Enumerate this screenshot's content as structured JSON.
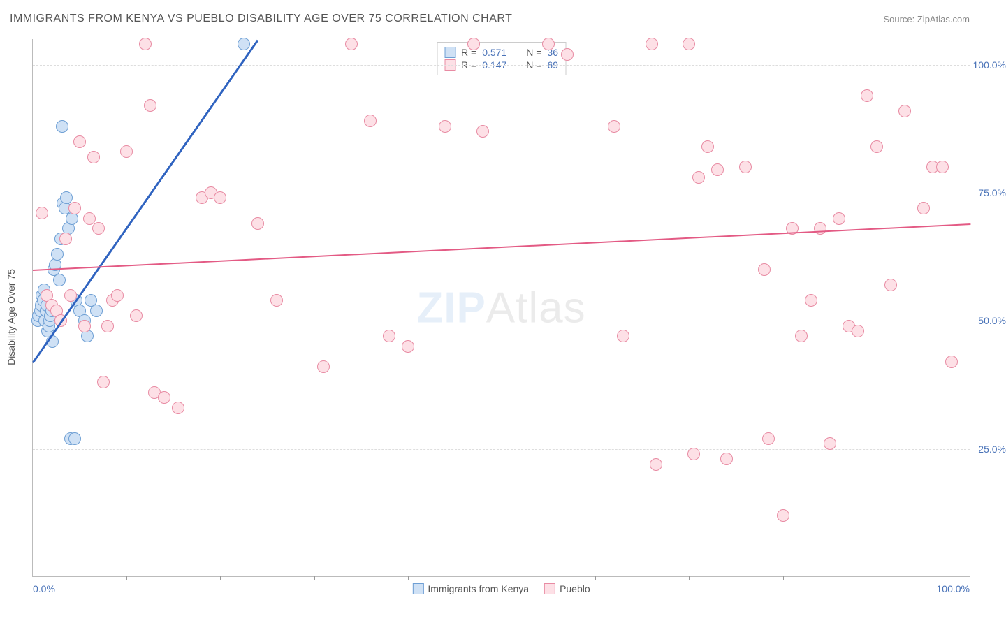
{
  "title": "IMMIGRANTS FROM KENYA VS PUEBLO DISABILITY AGE OVER 75 CORRELATION CHART",
  "source_label": "Source: ZipAtlas.com",
  "ylabel": "Disability Age Over 75",
  "watermark_bold": "ZIP",
  "watermark_light": "Atlas",
  "watermark_color_bold": "#a9c7ea",
  "watermark_color_light": "#b8b8b8",
  "chart": {
    "type": "scatter",
    "background_color": "#ffffff",
    "grid_color": "#dddddd",
    "axis_color": "#bbbbbb",
    "tick_color": "#4a73b8",
    "xlim": [
      0,
      100
    ],
    "ylim": [
      0,
      105
    ],
    "y_ticks": [
      25,
      50,
      75,
      100
    ],
    "y_tick_labels": [
      "25.0%",
      "50.0%",
      "75.0%",
      "100.0%"
    ],
    "x_ticks_minor": [
      10,
      20,
      30,
      40,
      50,
      60,
      70,
      80,
      90
    ],
    "x_tick_left_label": "0.0%",
    "x_tick_right_label": "100.0%",
    "marker_radius": 9,
    "marker_stroke_width": 1.5,
    "series": [
      {
        "name": "Immigrants from Kenya",
        "fill": "#cfe1f5",
        "stroke": "#6e9fd4",
        "r_value": "0.571",
        "n_value": "36",
        "trend": {
          "x1": 0,
          "y1": 42,
          "x2": 24,
          "y2": 105,
          "color": "#2f63c0",
          "width": 3
        },
        "points": [
          [
            0.5,
            50
          ],
          [
            0.6,
            51
          ],
          [
            0.8,
            52
          ],
          [
            0.9,
            53
          ],
          [
            1.0,
            55
          ],
          [
            1.1,
            54
          ],
          [
            1.2,
            56
          ],
          [
            1.3,
            50
          ],
          [
            1.4,
            52
          ],
          [
            1.5,
            53
          ],
          [
            1.6,
            48
          ],
          [
            1.7,
            49
          ],
          [
            1.8,
            50
          ],
          [
            1.9,
            51
          ],
          [
            2.0,
            52
          ],
          [
            2.2,
            60
          ],
          [
            2.4,
            61
          ],
          [
            2.6,
            63
          ],
          [
            2.8,
            58
          ],
          [
            3.0,
            66
          ],
          [
            3.2,
            73
          ],
          [
            3.4,
            72
          ],
          [
            3.6,
            74
          ],
          [
            3.8,
            68
          ],
          [
            4.2,
            70
          ],
          [
            4.6,
            54
          ],
          [
            5.0,
            52
          ],
          [
            5.5,
            50
          ],
          [
            5.8,
            47
          ],
          [
            2.1,
            46
          ],
          [
            4.0,
            27
          ],
          [
            4.5,
            27
          ],
          [
            3.1,
            88
          ],
          [
            6.2,
            54
          ],
          [
            6.8,
            52
          ],
          [
            22.5,
            104
          ]
        ]
      },
      {
        "name": "Pueblo",
        "fill": "#fde0e6",
        "stroke": "#e88ba3",
        "r_value": "0.147",
        "n_value": "69",
        "trend": {
          "x1": 0,
          "y1": 60,
          "x2": 100,
          "y2": 69,
          "color": "#e35a84",
          "width": 2
        },
        "points": [
          [
            1,
            71
          ],
          [
            1.5,
            55
          ],
          [
            2,
            53
          ],
          [
            2.5,
            52
          ],
          [
            3,
            50
          ],
          [
            3.5,
            66
          ],
          [
            4,
            55
          ],
          [
            4.5,
            72
          ],
          [
            5,
            85
          ],
          [
            5.5,
            49
          ],
          [
            6,
            70
          ],
          [
            7,
            68
          ],
          [
            7.5,
            38
          ],
          [
            8,
            49
          ],
          [
            8.5,
            54
          ],
          [
            9,
            55
          ],
          [
            10,
            83
          ],
          [
            11,
            51
          ],
          [
            12,
            104
          ],
          [
            12.5,
            92
          ],
          [
            13,
            36
          ],
          [
            14,
            35
          ],
          [
            15.5,
            33
          ],
          [
            18,
            74
          ],
          [
            19,
            75
          ],
          [
            20,
            74
          ],
          [
            24,
            69
          ],
          [
            26,
            54
          ],
          [
            31,
            41
          ],
          [
            34,
            104
          ],
          [
            36,
            89
          ],
          [
            38,
            47
          ],
          [
            40,
            45
          ],
          [
            44,
            88
          ],
          [
            47,
            104
          ],
          [
            55,
            104
          ],
          [
            57,
            102
          ],
          [
            62,
            88
          ],
          [
            63,
            47
          ],
          [
            66,
            104
          ],
          [
            70,
            104
          ],
          [
            71,
            78
          ],
          [
            72,
            84
          ],
          [
            73,
            79.5
          ],
          [
            74,
            23
          ],
          [
            76,
            80
          ],
          [
            78,
            60
          ],
          [
            78.5,
            27
          ],
          [
            80,
            12
          ],
          [
            81,
            68
          ],
          [
            82,
            47
          ],
          [
            83,
            54
          ],
          [
            84,
            68
          ],
          [
            85,
            26
          ],
          [
            86,
            70
          ],
          [
            87,
            49
          ],
          [
            88,
            48
          ],
          [
            89,
            94
          ],
          [
            90,
            84
          ],
          [
            91.5,
            57
          ],
          [
            93,
            91
          ],
          [
            95,
            72
          ],
          [
            96,
            80
          ],
          [
            97,
            80
          ],
          [
            98,
            42
          ],
          [
            66.5,
            22
          ],
          [
            70.5,
            24
          ],
          [
            48,
            87
          ],
          [
            6.5,
            82
          ]
        ]
      }
    ],
    "legend_top": {
      "r_label": "R =",
      "n_label": "N ="
    },
    "legend_bottom_labels": [
      "Immigrants from Kenya",
      "Pueblo"
    ]
  }
}
